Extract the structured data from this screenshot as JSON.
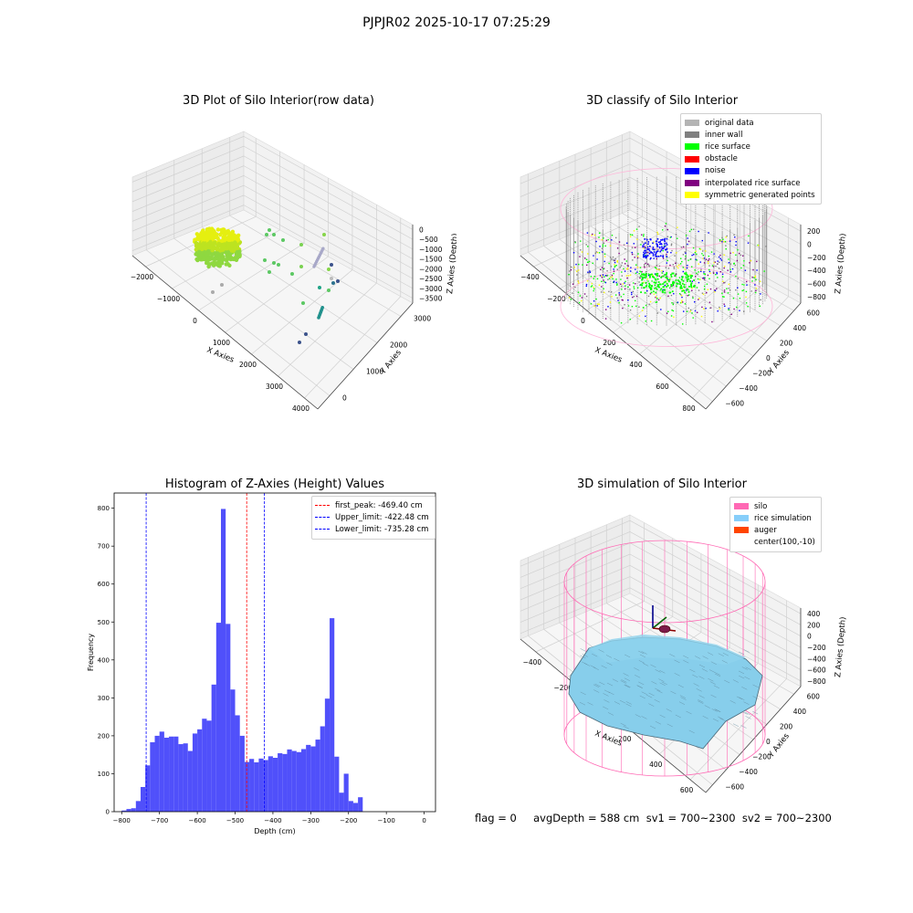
{
  "suptitle": "PJPJR02 2025-10-17 07:25:29",
  "footer": "flag = 0     avgDepth = 588 cm  sv1 = 700~2300  sv2 = 700~2300",
  "colors": {
    "hist_bar": "#5050fa",
    "peak_line": "#ff0000",
    "limit_line": "#0000ff",
    "silo": "#ff69b4",
    "rice": "#87cefa",
    "auger": "#ff4500"
  },
  "panels": [
    {
      "title": "3D Plot of Silo Interior(row data)",
      "type": "3d-scatter",
      "x_label": "X Axies",
      "y_label": "Y Axies",
      "z_label": "Z Axies (Depth)",
      "x_ticks": [
        "−2000",
        "−1000",
        "0",
        "1000",
        "2000",
        "3000",
        "4000"
      ],
      "y_ticks": [
        "0",
        "1000",
        "2000",
        "3000"
      ],
      "z_ticks": [
        "0",
        "−500",
        "−1000",
        "−1500",
        "−2000",
        "−2500",
        "−3000",
        "−3500"
      ]
    },
    {
      "title": "3D classify of Silo Interior",
      "type": "3d-scatter",
      "x_label": "X Axies",
      "y_label": "Y Axies",
      "z_label": "Z Axies (Depth)",
      "x_ticks": [
        "−400",
        "−200",
        "0",
        "200",
        "400",
        "600",
        "800"
      ],
      "y_ticks": [
        "−600",
        "−400",
        "−200",
        "0",
        "200",
        "400",
        "600"
      ],
      "z_ticks": [
        "200",
        "0",
        "−200",
        "−400",
        "−600",
        "−800"
      ],
      "legend": [
        {
          "label": "original data",
          "color": "#b4b4b4"
        },
        {
          "label": "inner wall",
          "color": "#808080"
        },
        {
          "label": "rice surface",
          "color": "#00ff00"
        },
        {
          "label": "obstacle",
          "color": "#ff0000"
        },
        {
          "label": "noise",
          "color": "#0000ff"
        },
        {
          "label": "interpolated rice surface",
          "color": "#800080"
        },
        {
          "label": "symmetric generated points",
          "color": "#ffff00"
        }
      ]
    },
    {
      "title": "Histogram of Z-Axies (Height) Values",
      "type": "histogram",
      "x_label": "Depth (cm)",
      "y_label": "Frequency",
      "x_ticks": [
        "−800",
        "−700",
        "−600",
        "−500",
        "−400",
        "−300",
        "−200",
        "−100",
        "0"
      ],
      "y_ticks": [
        "0",
        "100",
        "200",
        "300",
        "400",
        "500",
        "600",
        "700",
        "800"
      ],
      "legend": [
        {
          "label": "first_peak: -469.40 cm",
          "color": "#ff0000"
        },
        {
          "label": "Upper_limit: -422.48 cm",
          "color": "#0000ff"
        },
        {
          "label": "Lower_limit: -735.28 cm",
          "color": "#0000ff"
        }
      ]
    },
    {
      "title": "3D simulation of Silo Interior",
      "type": "3d-surface",
      "x_label": "X Axies",
      "y_label": "Y Axies",
      "z_label": "Z Axies (Depth)",
      "x_ticks": [
        "−400",
        "−200",
        "0",
        "200",
        "400",
        "600"
      ],
      "y_ticks": [
        "−600",
        "−400",
        "−200",
        "0",
        "200",
        "400",
        "600"
      ],
      "z_ticks": [
        "400",
        "200",
        "0",
        "−200",
        "−400",
        "−600",
        "−800"
      ],
      "legend": [
        {
          "label": "silo",
          "color": "#ff69b4"
        },
        {
          "label": "rice simulation",
          "color": "#87cefa"
        },
        {
          "label": "auger",
          "color": "#ff4500"
        },
        {
          "label": "center(100,-10)",
          "color": ""
        }
      ]
    }
  ],
  "chart_data": [
    {
      "type": "scatter",
      "title": "3D Plot of Silo Interior(row data)"
    },
    {
      "type": "scatter",
      "title": "3D classify of Silo Interior"
    },
    {
      "type": "bar",
      "title": "Histogram of Z-Axies (Height) Values",
      "xlabel": "Depth (cm)",
      "ylabel": "Frequency",
      "xlim": [
        -820,
        30
      ],
      "ylim": [
        0,
        840
      ],
      "bin_start": -800,
      "bin_width": 12.5,
      "values": [
        3,
        7,
        9,
        28,
        65,
        122,
        183,
        200,
        211,
        195,
        198,
        198,
        178,
        180,
        160,
        206,
        217,
        245,
        240,
        335,
        498,
        798,
        495,
        322,
        254,
        200,
        131,
        139,
        130,
        140,
        136,
        146,
        142,
        154,
        152,
        164,
        160,
        157,
        165,
        176,
        172,
        190,
        225,
        298,
        510,
        145,
        50,
        100,
        28,
        23,
        38
      ],
      "vlines": [
        {
          "label": "first_peak: -469.40 cm",
          "x": -469.4
        },
        {
          "label": "Upper_limit: -422.48 cm",
          "x": -422.48
        },
        {
          "label": "Lower_limit: -735.28 cm",
          "x": -735.28
        }
      ],
      "legend_position": "upper right"
    },
    {
      "type": "area",
      "title": "3D simulation of Silo Interior",
      "center": [
        100,
        -10
      ]
    }
  ]
}
